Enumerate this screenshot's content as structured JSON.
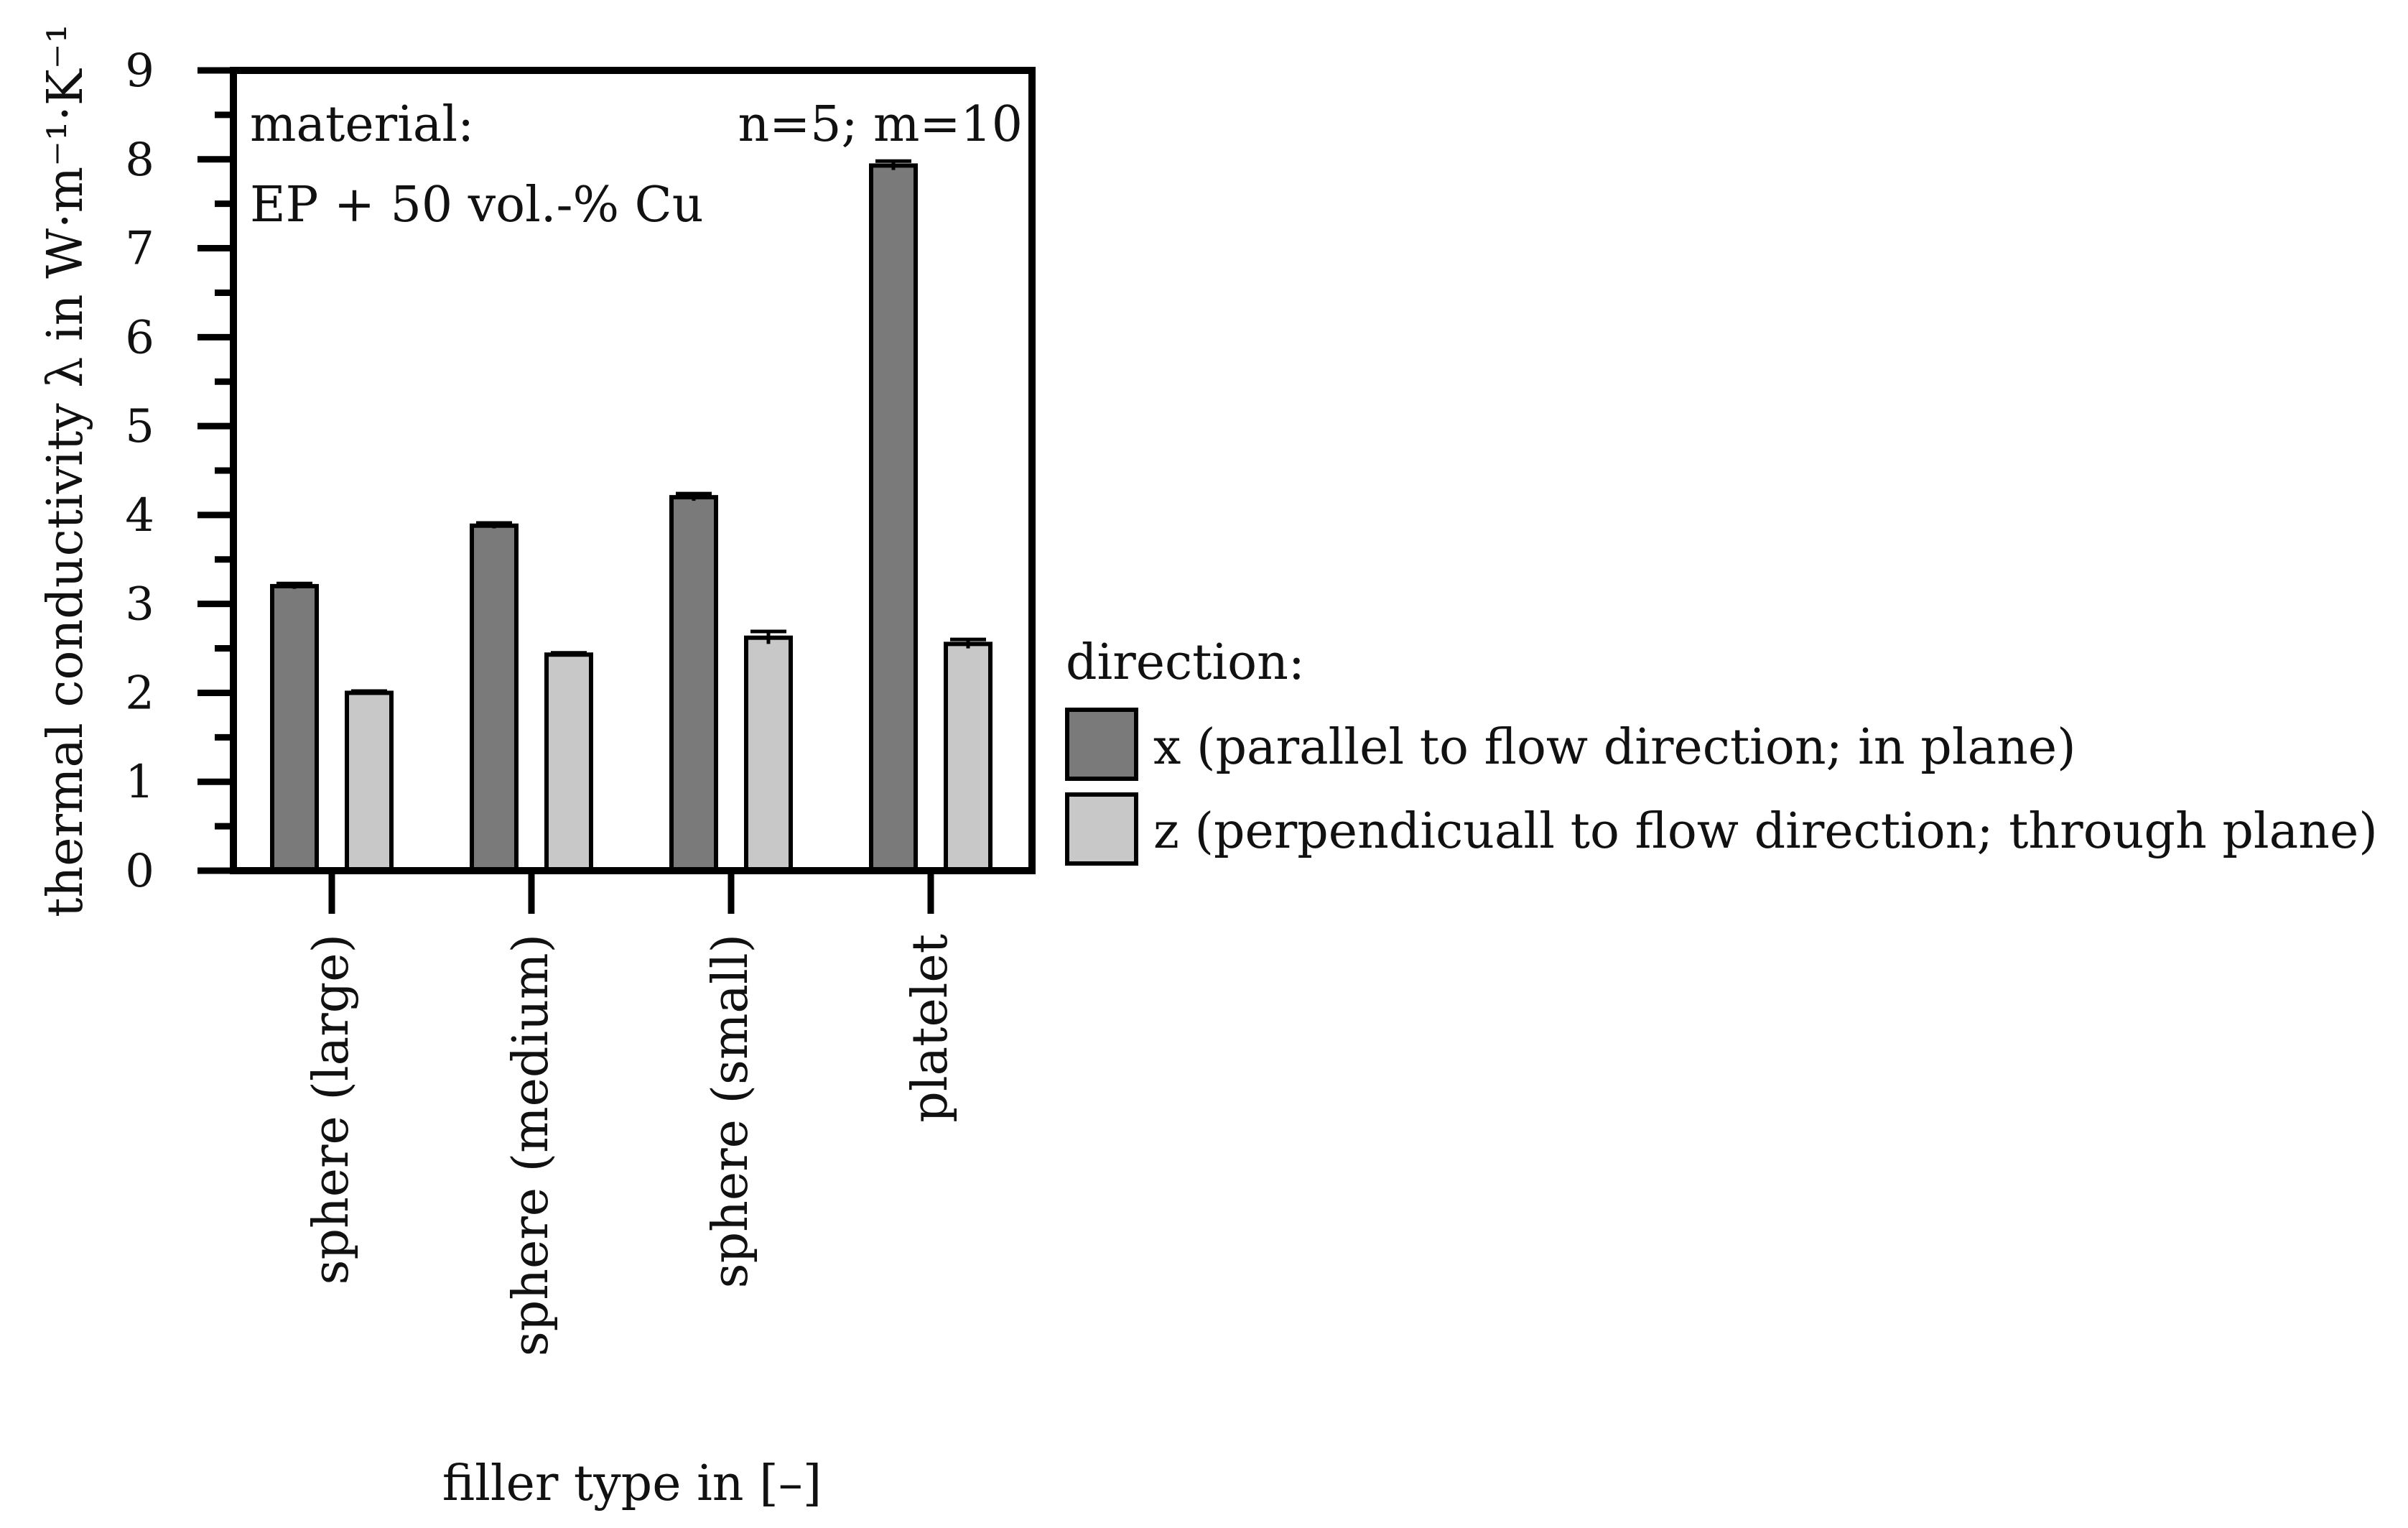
{
  "chart_data": {
    "type": "bar",
    "title": "",
    "xlabel": "filler type in [–]",
    "ylabel": "thermal conductivity λ in W·m⁻¹·K⁻¹",
    "categories": [
      "sphere (large)",
      "sphere (medium)",
      "sphere (small)",
      "platelet"
    ],
    "series": [
      {
        "name": "x (parallel to flow direction; in plane)",
        "values": [
          3.2,
          3.88,
          4.2,
          7.93
        ],
        "errors": [
          0.03,
          0.03,
          0.04,
          0.05
        ],
        "color": "#7a7a7a"
      },
      {
        "name": "z (perpendicuall to flow direction; through plane)",
        "values": [
          2.0,
          2.43,
          2.62,
          2.55
        ],
        "errors": [
          0.02,
          0.02,
          0.07,
          0.05
        ],
        "color": "#c8c8c8"
      }
    ],
    "yticks": [
      "0",
      "1",
      "2",
      "3",
      "4",
      "5",
      "6",
      "7",
      "8",
      "9"
    ],
    "ylim": [
      0,
      9
    ],
    "grid": false,
    "legend_title": "direction:",
    "legend_position": "right",
    "annotations": {
      "material_label": "material:",
      "material_value": "EP + 50 vol.-% Cu",
      "sample_info": "n=5; m=10"
    }
  }
}
